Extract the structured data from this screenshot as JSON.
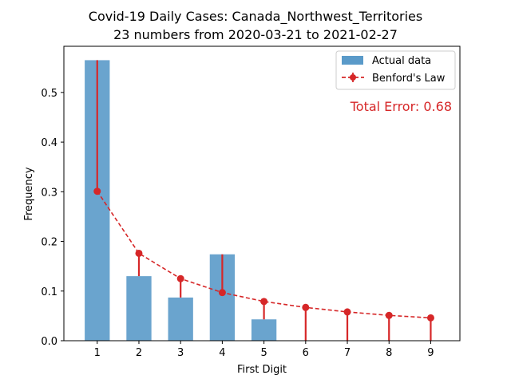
{
  "chart_data": {
    "type": "bar",
    "title": "Covid-19 Daily Cases: Canada_Northwest_Territories",
    "subtitle": "23 numbers from 2020-03-21 to 2021-02-27",
    "xlabel": "First Digit",
    "ylabel": "Frequency",
    "categories": [
      "1",
      "2",
      "3",
      "4",
      "5",
      "6",
      "7",
      "8",
      "9"
    ],
    "x": [
      1,
      2,
      3,
      4,
      5,
      6,
      7,
      8,
      9
    ],
    "xlim": [
      0.2,
      9.7
    ],
    "ylim": [
      0,
      0.593
    ],
    "yticks": [
      0.0,
      0.1,
      0.2,
      0.3,
      0.4,
      0.5
    ],
    "ytick_labels": [
      "0.0",
      "0.1",
      "0.2",
      "0.3",
      "0.4",
      "0.5"
    ],
    "series": [
      {
        "name": "Actual data",
        "type": "bar",
        "color": "#5a9ac9",
        "values": [
          0.565,
          0.13,
          0.087,
          0.174,
          0.043,
          0.0,
          0.0,
          0.0,
          0.0
        ]
      },
      {
        "name": "Benford's Law",
        "type": "line",
        "color": "#d62728",
        "style": "dashed",
        "values": [
          0.301,
          0.176,
          0.125,
          0.097,
          0.079,
          0.067,
          0.058,
          0.051,
          0.046
        ]
      }
    ],
    "annotation": {
      "text": "Total Error: 0.68",
      "color": "#d62728"
    },
    "legend_position": "top-right",
    "grid": false
  }
}
